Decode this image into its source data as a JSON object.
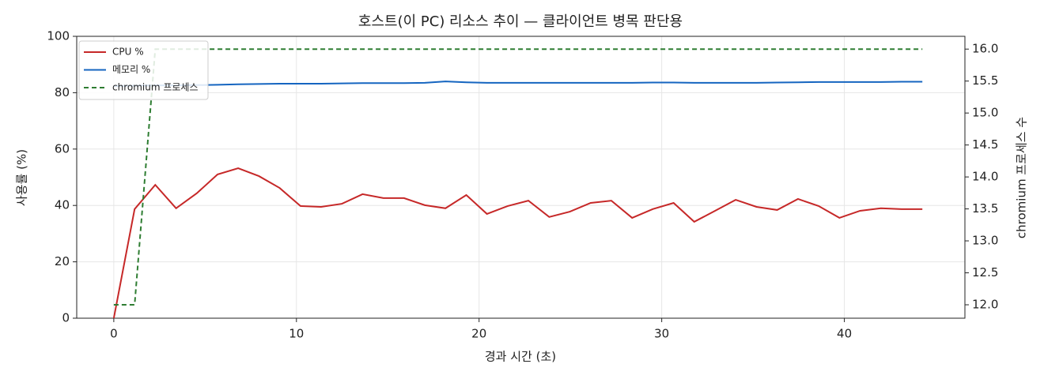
{
  "chart_data": {
    "type": "line",
    "title": "호스트(이 PC) 리소스 추이 — 클라이언트 병목 판단용",
    "xlabel": "경과 시간 (초)",
    "ylabel": "사용률 (%)",
    "y2label": "chromium 프로세스 수",
    "x": [
      0,
      1.14,
      2.27,
      3.41,
      4.54,
      5.68,
      6.81,
      7.95,
      9.08,
      10.22,
      11.35,
      12.49,
      13.62,
      14.76,
      15.89,
      17.03,
      18.16,
      19.3,
      20.43,
      21.57,
      22.7,
      23.84,
      24.97,
      26.11,
      27.24,
      28.38,
      29.51,
      30.65,
      31.78,
      32.92,
      34.05,
      35.19,
      36.32,
      37.46,
      38.59,
      39.73,
      40.86,
      42.0,
      43.13,
      44.27
    ],
    "series": [
      {
        "name": "CPU %",
        "color": "#c62828",
        "axis": "y",
        "values": [
          0,
          38.7,
          47.3,
          39,
          44.3,
          51,
          53.2,
          50.4,
          46.2,
          39.8,
          39.5,
          40.6,
          44,
          42.6,
          42.6,
          40.1,
          39,
          43.7,
          37,
          39.8,
          41.7,
          35.9,
          37.8,
          40.9,
          41.7,
          35.6,
          38.7,
          40.9,
          34.2,
          38.1,
          42,
          39.5,
          38.4,
          42.3,
          39.8,
          35.6,
          38.1,
          39,
          38.7,
          38.7
        ]
      },
      {
        "name": "메모리 %",
        "color": "#1565c0",
        "axis": "y",
        "values": [
          82.4,
          82.5,
          82.6,
          82.6,
          82.7,
          82.8,
          83,
          83.1,
          83.2,
          83.2,
          83.2,
          83.3,
          83.4,
          83.4,
          83.4,
          83.5,
          84,
          83.7,
          83.5,
          83.5,
          83.5,
          83.5,
          83.5,
          83.5,
          83.5,
          83.5,
          83.6,
          83.6,
          83.5,
          83.5,
          83.5,
          83.5,
          83.6,
          83.7,
          83.8,
          83.8,
          83.8,
          83.8,
          83.9,
          83.9
        ]
      },
      {
        "name": "chromium 프로세스",
        "color": "#2e7d32",
        "axis": "y2",
        "linestyle": "dashed",
        "values": [
          12,
          12,
          16,
          16,
          16,
          16,
          16,
          16,
          16,
          16,
          16,
          16,
          16,
          16,
          16,
          16,
          16,
          16,
          16,
          16,
          16,
          16,
          16,
          16,
          16,
          16,
          16,
          16,
          16,
          16,
          16,
          16,
          16,
          16,
          16,
          16,
          16,
          16,
          16,
          16
        ]
      }
    ],
    "xlim": [
      -2.03,
      46.6
    ],
    "xticks": [
      0,
      10,
      20,
      30,
      40
    ],
    "ylim": [
      0,
      100
    ],
    "yticks": [
      0,
      20,
      40,
      60,
      80,
      100
    ],
    "y2lim": [
      11.79,
      16.2
    ],
    "y2ticks": [
      {
        "value": 12,
        "label": "12.0"
      },
      12.5,
      {
        "value": 13,
        "label": "13.0"
      },
      13.5,
      {
        "value": 14,
        "label": "14.0"
      },
      14.5,
      {
        "value": 15,
        "label": "15.0"
      },
      15.5,
      {
        "value": 16,
        "label": "16.0"
      }
    ],
    "grid": true,
    "legend": "upper left"
  }
}
